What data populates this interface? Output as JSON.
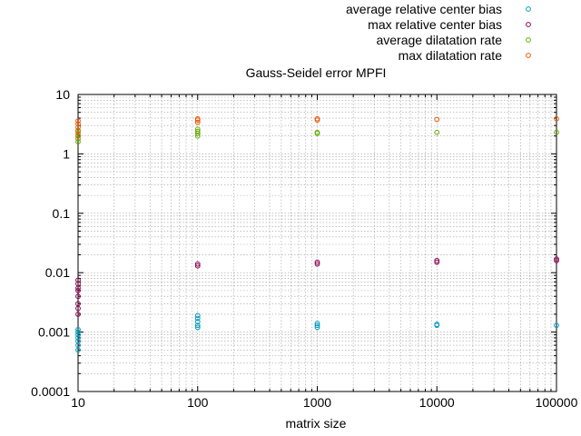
{
  "chart_data": {
    "type": "scatter",
    "title": "Gauss-Seidel error MPFI",
    "xlabel": "matrix size",
    "ylabel": "",
    "xscale": "log",
    "yscale": "log",
    "xlim": [
      10,
      100000
    ],
    "ylim": [
      0.0001,
      10
    ],
    "xticks": [
      "10",
      "100",
      "1000",
      "10000",
      "100000"
    ],
    "yticks": [
      "0.0001",
      "0.001",
      "0.01",
      "0.1",
      "1",
      "10"
    ],
    "grid": true,
    "legend_position": "top-right, outside plot",
    "marker": "open-circle",
    "series": [
      {
        "name": "average relative center bias",
        "color": "#0099bb",
        "points": [
          [
            10,
            0.0005
          ],
          [
            10,
            0.0006
          ],
          [
            10,
            0.0007
          ],
          [
            10,
            0.0008
          ],
          [
            10,
            0.0009
          ],
          [
            10,
            0.001
          ],
          [
            10,
            0.0011
          ],
          [
            100,
            0.0012
          ],
          [
            100,
            0.0013
          ],
          [
            100,
            0.0015
          ],
          [
            100,
            0.0017
          ],
          [
            100,
            0.0019
          ],
          [
            1000,
            0.0012
          ],
          [
            1000,
            0.0013
          ],
          [
            1000,
            0.0014
          ],
          [
            10000,
            0.0013
          ],
          [
            10000,
            0.00135
          ],
          [
            100000,
            0.0013
          ]
        ]
      },
      {
        "name": "max relative center bias",
        "color": "#8b0050",
        "points": [
          [
            10,
            0.002
          ],
          [
            10,
            0.0025
          ],
          [
            10,
            0.003
          ],
          [
            10,
            0.004
          ],
          [
            10,
            0.005
          ],
          [
            10,
            0.0055
          ],
          [
            10,
            0.0065
          ],
          [
            10,
            0.0075
          ],
          [
            100,
            0.013
          ],
          [
            100,
            0.014
          ],
          [
            1000,
            0.014
          ],
          [
            1000,
            0.015
          ],
          [
            10000,
            0.015
          ],
          [
            10000,
            0.016
          ],
          [
            100000,
            0.016
          ],
          [
            100000,
            0.017
          ]
        ]
      },
      {
        "name": "average dilatation rate",
        "color": "#66aa00",
        "points": [
          [
            10,
            1.6
          ],
          [
            10,
            1.8
          ],
          [
            10,
            2.0
          ],
          [
            10,
            2.2
          ],
          [
            10,
            2.5
          ],
          [
            100,
            2.0
          ],
          [
            100,
            2.2
          ],
          [
            100,
            2.4
          ],
          [
            100,
            2.6
          ],
          [
            1000,
            2.2
          ],
          [
            1000,
            2.3
          ],
          [
            10000,
            2.3
          ],
          [
            100000,
            2.3
          ]
        ]
      },
      {
        "name": "max dilatation rate",
        "color": "#ee5500",
        "points": [
          [
            10,
            2.0
          ],
          [
            10,
            2.4
          ],
          [
            10,
            2.8
          ],
          [
            10,
            3.2
          ],
          [
            10,
            3.6
          ],
          [
            100,
            3.4
          ],
          [
            100,
            3.7
          ],
          [
            100,
            3.9
          ],
          [
            1000,
            3.7
          ],
          [
            1000,
            3.9
          ],
          [
            10000,
            3.8
          ],
          [
            100000,
            3.9
          ]
        ]
      }
    ]
  }
}
